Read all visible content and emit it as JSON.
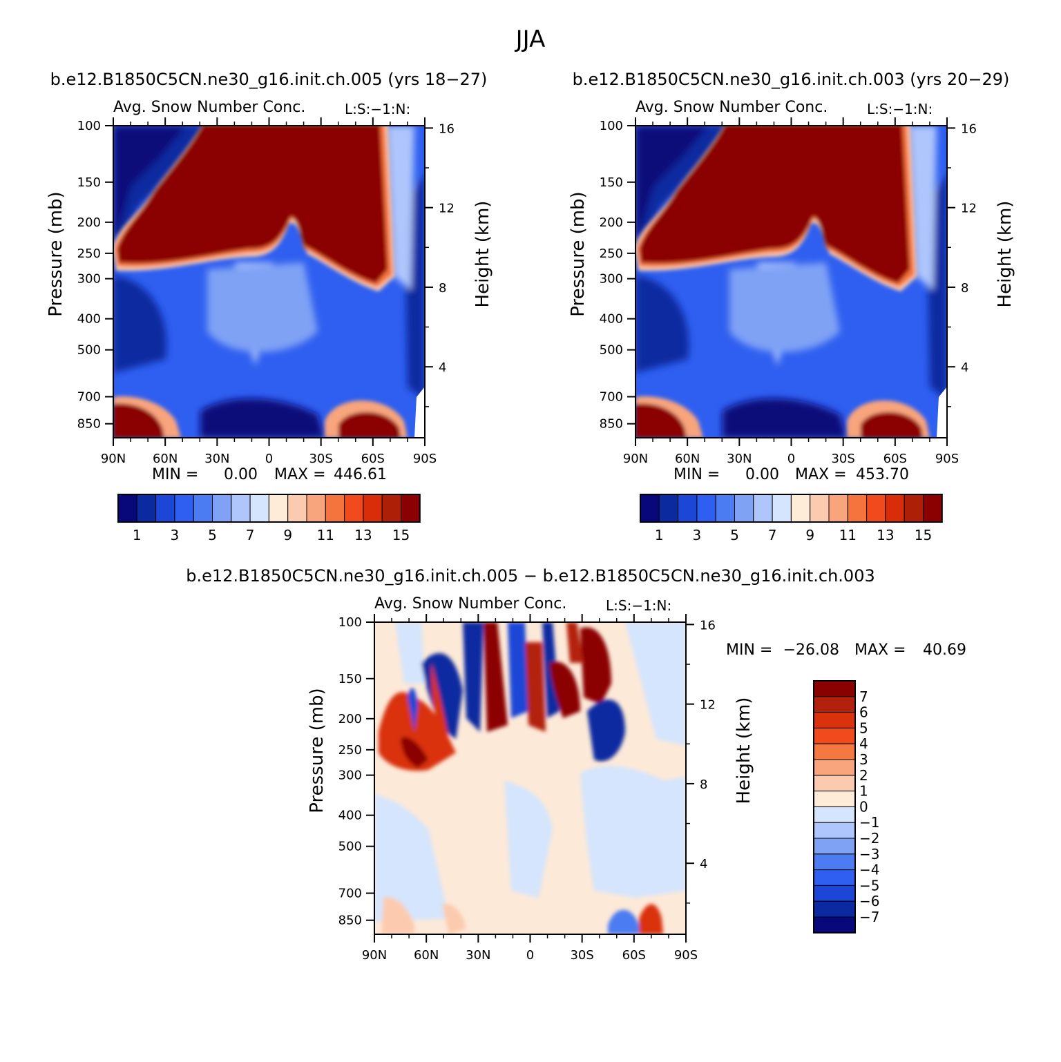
{
  "chart_data": {
    "type": "heatmap",
    "title": "JJA",
    "panels": [
      {
        "id": "case",
        "header": "b.e12.B1850C5CN.ne30_g16.init.ch.005 (yrs 18−27)",
        "title": "Avg. Snow Number Conc.",
        "units": "L:S:−1:N:",
        "xlabel": "",
        "ylabel": "Pressure (mb)",
        "y2label": "Height (km)",
        "xticks": [
          "90N",
          "60N",
          "30N",
          "0",
          "30S",
          "60S",
          "90S"
        ],
        "yticks": [
          100,
          150,
          200,
          250,
          300,
          400,
          500,
          700,
          850
        ],
        "y2ticks": [
          16,
          12,
          8,
          4
        ],
        "minmax": {
          "min": "0.00",
          "max": "446.61"
        },
        "colorbar": {
          "orientation": "horizontal",
          "labels": [
            "1",
            "3",
            "5",
            "7",
            "9",
            "11",
            "13",
            "15"
          ]
        }
      },
      {
        "id": "control",
        "header": "b.e12.B1850C5CN.ne30_g16.init.ch.003 (yrs 20−29)",
        "title": "Avg. Snow Number Conc.",
        "units": "L:S:−1:N:",
        "xlabel": "",
        "ylabel": "Pressure (mb)",
        "y2label": "Height (km)",
        "xticks": [
          "90N",
          "60N",
          "30N",
          "0",
          "30S",
          "60S",
          "90S"
        ],
        "yticks": [
          100,
          150,
          200,
          250,
          300,
          400,
          500,
          700,
          850
        ],
        "y2ticks": [
          16,
          12,
          8,
          4
        ],
        "minmax": {
          "min": "0.00",
          "max": "453.70"
        },
        "colorbar": {
          "orientation": "horizontal",
          "labels": [
            "1",
            "3",
            "5",
            "7",
            "9",
            "11",
            "13",
            "15"
          ]
        }
      },
      {
        "id": "diff",
        "header": "b.e12.B1850C5CN.ne30_g16.init.ch.005 − b.e12.B1850C5CN.ne30_g16.init.ch.003",
        "title": "Avg. Snow Number Conc.",
        "units": "L:S:−1:N:",
        "xlabel": "",
        "ylabel": "Pressure (mb)",
        "y2label": "Height (km)",
        "xticks": [
          "90N",
          "60N",
          "30N",
          "0",
          "30S",
          "60S",
          "90S"
        ],
        "yticks": [
          100,
          150,
          200,
          250,
          300,
          400,
          500,
          700,
          850
        ],
        "y2ticks": [
          16,
          12,
          8,
          4
        ],
        "minmax": {
          "min": "−26.08",
          "max": "40.69"
        },
        "colorbar": {
          "orientation": "vertical",
          "labels": [
            "7",
            "6",
            "5",
            "4",
            "3",
            "2",
            "1",
            "0",
            "−1",
            "−2",
            "−3",
            "−4",
            "−5",
            "−6",
            "−7"
          ]
        }
      }
    ],
    "palette": [
      "#08087a",
      "#0b2aa0",
      "#1c46d6",
      "#2f5ff0",
      "#4b7cf2",
      "#7fa2f5",
      "#aec6fb",
      "#d4e5fd",
      "#feebd8",
      "#fccbaf",
      "#f8a47d",
      "#f5733c",
      "#f14a1c",
      "#d92c08",
      "#ad1f07",
      "#8b0000"
    ],
    "diff_palette": [
      "#8b0000",
      "#b3200c",
      "#d9320c",
      "#f14a1c",
      "#f57840",
      "#f8a47d",
      "#fccbaf",
      "#feebd8",
      "#d4e5fd",
      "#aec6fb",
      "#7fa2f5",
      "#4b7cf2",
      "#2f5ff0",
      "#1c46d6",
      "#0b2aa0",
      "#08087a"
    ]
  }
}
